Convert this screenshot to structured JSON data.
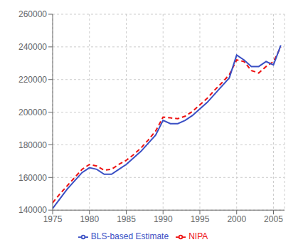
{
  "chart_data": {
    "type": "line",
    "x": [
      1975,
      1976,
      1977,
      1978,
      1979,
      1980,
      1981,
      1982,
      1983,
      1984,
      1985,
      1986,
      1987,
      1988,
      1989,
      1990,
      1991,
      1992,
      1993,
      1994,
      1995,
      1996,
      1997,
      1998,
      1999,
      2000,
      2001,
      2002,
      2003,
      2004,
      2005,
      2006
    ],
    "series": [
      {
        "name": "NIPA",
        "color": "#ee1111",
        "line_style": "dashed",
        "values": [
          144500,
          150000,
          155000,
          160000,
          165000,
          168000,
          167000,
          164500,
          165000,
          168000,
          170500,
          174000,
          178000,
          183000,
          188500,
          197000,
          196500,
          196000,
          197500,
          200500,
          204500,
          208500,
          213500,
          218000,
          223000,
          232000,
          231000,
          225500,
          224000,
          228000,
          231000,
          240000
        ]
      },
      {
        "name": "BLS-based Estimate",
        "color": "#3a4fc4",
        "line_style": "solid",
        "values": [
          141000,
          147000,
          153000,
          158000,
          163000,
          166000,
          165000,
          162000,
          162000,
          165000,
          168000,
          172000,
          176000,
          181000,
          186000,
          195000,
          193000,
          193000,
          195000,
          198000,
          202000,
          206000,
          211000,
          216000,
          221000,
          235000,
          232000,
          228000,
          228000,
          231000,
          229000,
          241000
        ]
      }
    ],
    "xlim": [
      1975,
      2006.5
    ],
    "ylim": [
      140000,
      260000
    ],
    "xticks": [
      1975,
      1980,
      1985,
      1990,
      1995,
      2000,
      2005
    ],
    "yticks": [
      140000,
      160000,
      180000,
      200000,
      220000,
      240000,
      260000
    ],
    "grid": true,
    "legend": "bottom"
  }
}
